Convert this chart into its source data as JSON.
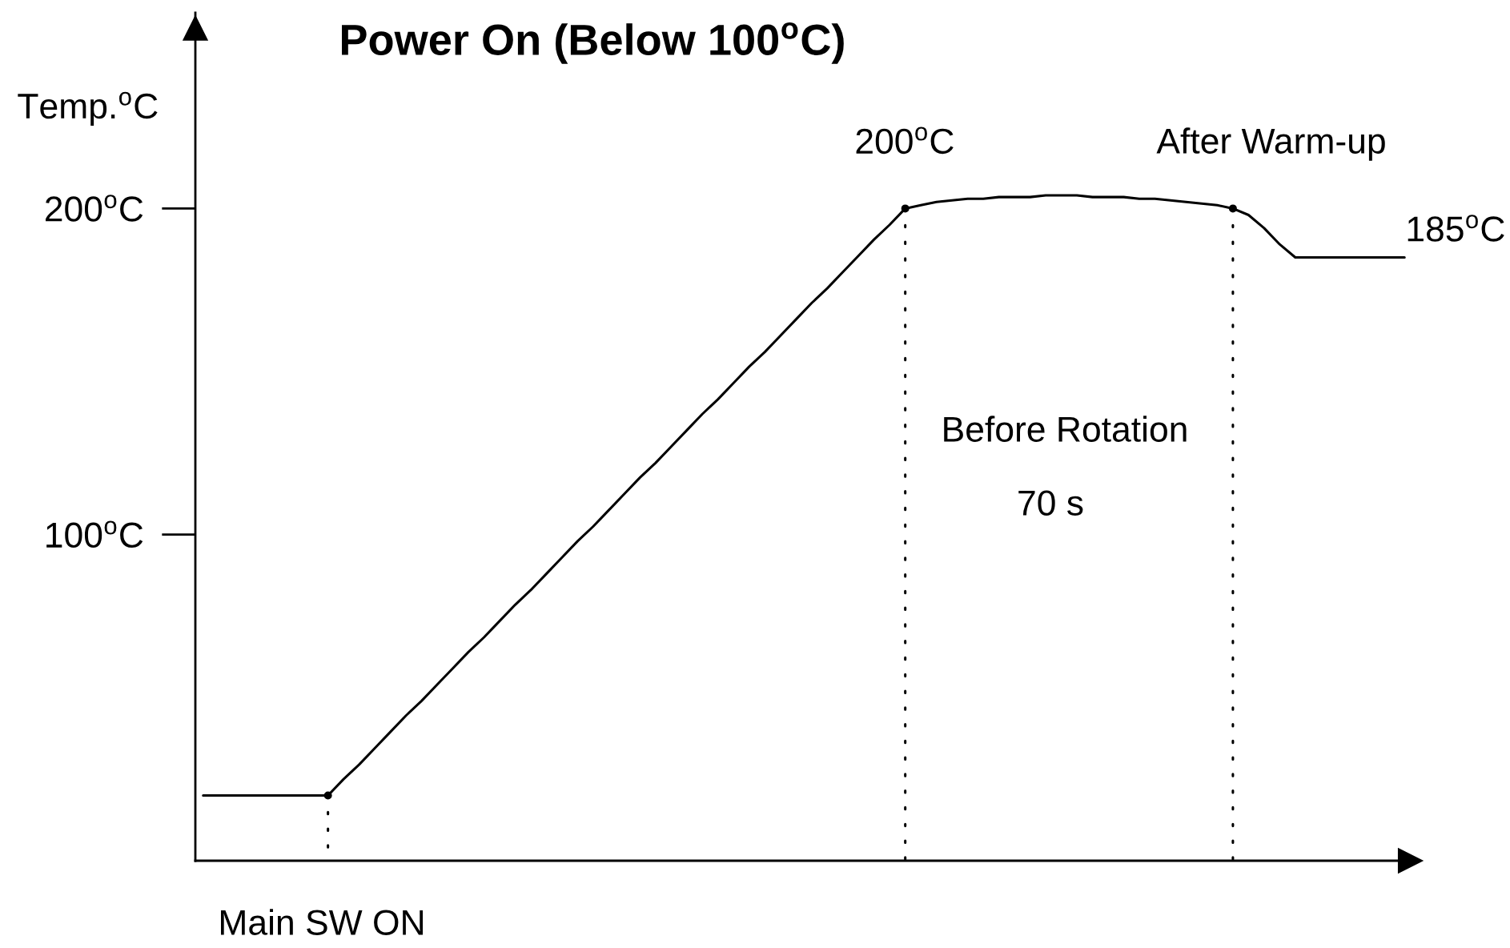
{
  "chart_data": {
    "type": "line",
    "title": "Power On (Below 100$^{o}$C)",
    "ylabel": "Temp.$^{o}$C",
    "categories": [
      null,
      null,
      null,
      null,
      null,
      null,
      null,
      null,
      null,
      null,
      null,
      null,
      null,
      null,
      null,
      null,
      null,
      null,
      null,
      null,
      null,
      null,
      null,
      null,
      null,
      null,
      null,
      null,
      null,
      null,
      null,
      null,
      null,
      null,
      null,
      null,
      null,
      null,
      null,
      null,
      null,
      null,
      null,
      null,
      null,
      null,
      null,
      null,
      null,
      null,
      null,
      null,
      null,
      null,
      null,
      null,
      null,
      null,
      null,
      null,
      null,
      null,
      null,
      null,
      null,
      null,
      null,
      null,
      null,
      null,
      null,
      null,
      null,
      null,
      null,
      null,
      null,
      null
    ],
    "series": [
      {
        "color": "#000000",
        "values": [
          20,
          20,
          20,
          20,
          20,
          20,
          20,
          20,
          20,
          25,
          29.5,
          34.5,
          39.5,
          44.5,
          49,
          54,
          59,
          64,
          68.5,
          73.5,
          78.5,
          83,
          88,
          93,
          98,
          102.5,
          107.5,
          112.5,
          117.5,
          122,
          127,
          132,
          137,
          141.5,
          146.5,
          151.5,
          156,
          161,
          166,
          171,
          175.5,
          180.5,
          185.5,
          190.5,
          195,
          200,
          201,
          202,
          202.5,
          203,
          203,
          203.5,
          203.5,
          203.5,
          204,
          204,
          204,
          203.5,
          203.5,
          203.5,
          203,
          203,
          202.5,
          202,
          201.5,
          201,
          200,
          198,
          194,
          189,
          185,
          185,
          185,
          185,
          185,
          185,
          185,
          185
        ]
      },
      {
        "type": "lollipop",
        "color": "#000000",
        "line_style": "dotted",
        "marker": "circle",
        "values": [
          null,
          null,
          null,
          null,
          null,
          null,
          null,
          null,
          20,
          null,
          null,
          null,
          null,
          null,
          null,
          null,
          null,
          null,
          null,
          null,
          null,
          null,
          null,
          null,
          null,
          null,
          null,
          null,
          null,
          null,
          null,
          null,
          null,
          null,
          null,
          null,
          null,
          null,
          null,
          null,
          null,
          null,
          null,
          null,
          null,
          200,
          null,
          null,
          null,
          null,
          null,
          null,
          null,
          null,
          null,
          null,
          null,
          null,
          null,
          null,
          null,
          null,
          null,
          null,
          null,
          null,
          200,
          null,
          null,
          null,
          null,
          null,
          null,
          null,
          null,
          null,
          null,
          null
        ]
      }
    ],
    "ylim": [
      0,
      260
    ],
    "yticks": [
      {
        "value": 100,
        "label": "100$^{o}$C"
      },
      {
        "value": 200,
        "label": "200$^{o}$C"
      }
    ],
    "tick_labels": "y",
    "line_style": "solid",
    "annotations": [
      "Main SW ON",
      {
        "text": "200$^{o}$C",
        "y": 200
      },
      "After Warm-up",
      "185$^{o}$C",
      "Before Rotation",
      "70 s"
    ]
  }
}
